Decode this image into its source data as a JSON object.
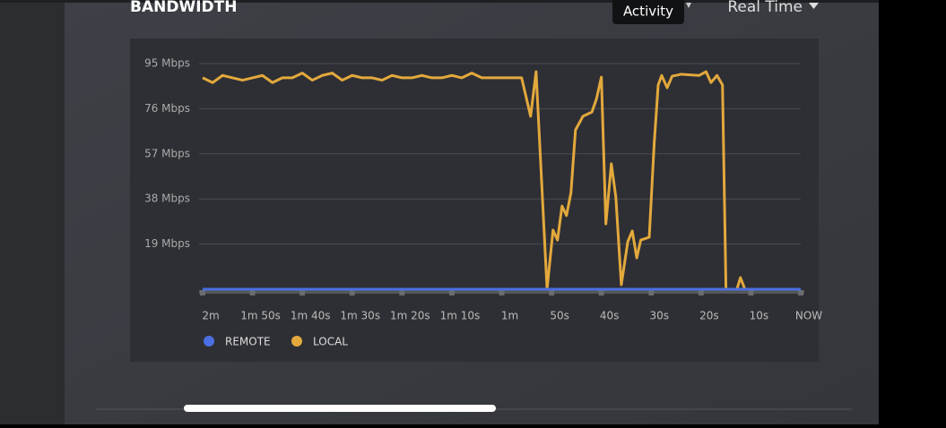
{
  "header": {
    "title": "BANDWIDTH",
    "tooltip": "Activity",
    "range_menu": "Real Time"
  },
  "chart_data": {
    "type": "line",
    "xlim": [
      -120,
      0
    ],
    "xticks": [
      {
        "value": -120,
        "label": "2m"
      },
      {
        "value": -110,
        "label": "1m 50s"
      },
      {
        "value": -100,
        "label": "1m 40s"
      },
      {
        "value": -90,
        "label": "1m 30s"
      },
      {
        "value": -80,
        "label": "1m 20s"
      },
      {
        "value": -70,
        "label": "1m 10s"
      },
      {
        "value": -60,
        "label": "1m"
      },
      {
        "value": -50,
        "label": "50s"
      },
      {
        "value": -40,
        "label": "40s"
      },
      {
        "value": -30,
        "label": "30s"
      },
      {
        "value": -20,
        "label": "20s"
      },
      {
        "value": -10,
        "label": "10s"
      },
      {
        "value": 0,
        "label": "NOW"
      }
    ],
    "ylim": [
      0,
      95
    ],
    "yticks": [
      {
        "value": 19,
        "label": "19 Mbps"
      },
      {
        "value": 38,
        "label": "38 Mbps"
      },
      {
        "value": 57,
        "label": "57 Mbps"
      },
      {
        "value": 76,
        "label": "76 Mbps"
      },
      {
        "value": 95,
        "label": "95 Mbps"
      }
    ],
    "grid": true,
    "series": [
      {
        "name": "REMOTE",
        "color": "#4b6fe2",
        "x": [
          -120,
          0
        ],
        "values": [
          0,
          0
        ]
      },
      {
        "name": "LOCAL",
        "color": "#e3a93c",
        "x": [
          -120,
          -118,
          -116,
          -114,
          -112,
          -110,
          -108,
          -106,
          -104,
          -102,
          -100,
          -98,
          -96,
          -94,
          -92,
          -90,
          -88,
          -86,
          -84,
          -82,
          -80,
          -78,
          -76,
          -74,
          -72,
          -70,
          -68,
          -66,
          -64,
          -62,
          -60,
          -58,
          -56,
          -54.2,
          -53.1,
          -50.9,
          -49.7,
          -48.8,
          -47.9,
          -47.0,
          -46.1,
          -45.2,
          -43.7,
          -41.9,
          -41.0,
          -40.0,
          -39.1,
          -38.0,
          -37.1,
          -36.0,
          -34.7,
          -33.8,
          -32.9,
          -32.1,
          -30.4,
          -29.4,
          -28.6,
          -27.9,
          -26.8,
          -25.8,
          -24.0,
          -20.4,
          -19.0,
          -18.0,
          -16.8,
          -15.7,
          -15.0,
          -12.8,
          -12.1,
          -11.2
        ],
        "values": [
          89,
          87,
          90,
          89,
          88,
          89,
          90,
          87,
          89,
          89,
          91,
          88,
          90,
          91,
          88,
          90,
          89,
          89,
          88,
          90,
          89,
          89,
          90,
          89,
          89,
          90,
          89,
          91,
          89,
          89,
          89,
          89,
          89,
          72.8,
          91.6,
          0,
          24.9,
          20.7,
          35,
          31,
          40.7,
          67,
          72.8,
          74.6,
          80,
          89.3,
          27.5,
          52.8,
          38.8,
          1.9,
          20,
          24.5,
          13.2,
          20.7,
          21.9,
          61.4,
          86,
          90,
          84.8,
          89.7,
          90.5,
          90,
          91.6,
          87,
          90,
          86,
          0,
          0,
          4.9,
          0
        ]
      }
    ]
  }
}
